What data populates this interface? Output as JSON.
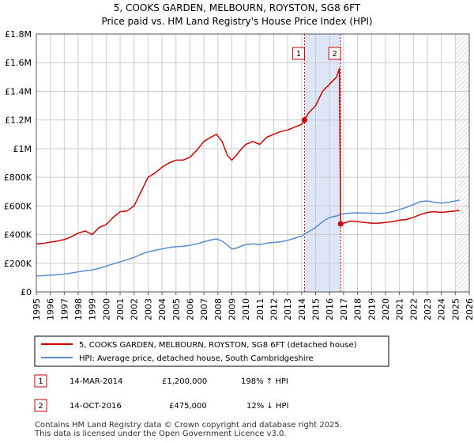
{
  "chart_data": {
    "type": "line",
    "title": "5, COOKS GARDEN, MELBOURN, ROYSTON, SG8 6FT",
    "subtitle": "Price paid vs. HM Land Registry's House Price Index (HPI)",
    "xlabel": "",
    "ylabel": "",
    "xlim": [
      1995,
      2026
    ],
    "ylim": [
      0,
      1800000
    ],
    "y_ticks": [
      {
        "value": 0,
        "label": "£0"
      },
      {
        "value": 200000,
        "label": "£200K"
      },
      {
        "value": 400000,
        "label": "£400K"
      },
      {
        "value": 600000,
        "label": "£600K"
      },
      {
        "value": 800000,
        "label": "£800K"
      },
      {
        "value": 1000000,
        "label": "£1M"
      },
      {
        "value": 1200000,
        "label": "£1.2M"
      },
      {
        "value": 1400000,
        "label": "£1.4M"
      },
      {
        "value": 1600000,
        "label": "£1.6M"
      },
      {
        "value": 1800000,
        "label": "£1.8M"
      }
    ],
    "x_ticks": [
      "1995",
      "1996",
      "1997",
      "1998",
      "1999",
      "2000",
      "2001",
      "2002",
      "2003",
      "2004",
      "2005",
      "2006",
      "2007",
      "2008",
      "2009",
      "2010",
      "2011",
      "2012",
      "2013",
      "2014",
      "2015",
      "2016",
      "2017",
      "2018",
      "2019",
      "2020",
      "2021",
      "2022",
      "2023",
      "2024",
      "2025",
      "2026"
    ],
    "grid": true,
    "shaded_period": {
      "start": 2014.2,
      "end": 2016.79
    },
    "future_hatch_start": 2025.0,
    "series": [
      {
        "name": "5, COOKS GARDEN, MELBOURN, ROYSTON, SG8 6FT (detached house)",
        "color": "#cc0000",
        "x": [
          1995,
          1995.5,
          1996,
          1996.5,
          1997,
          1997.5,
          1998,
          1998.5,
          1999,
          1999.5,
          2000,
          2000.5,
          2001,
          2001.5,
          2002,
          2002.5,
          2003,
          2003.5,
          2004,
          2004.5,
          2005,
          2005.5,
          2006,
          2006.5,
          2007,
          2007.5,
          2007.9,
          2008.3,
          2008.7,
          2009,
          2009.3,
          2009.7,
          2010,
          2010.5,
          2011,
          2011.5,
          2012,
          2012.5,
          2013,
          2013.5,
          2014.0,
          2014.2,
          2014.5,
          2015,
          2015.5,
          2016,
          2016.5,
          2016.7,
          2016.79,
          2017,
          2017.5,
          2018,
          2018.5,
          2019,
          2019.5,
          2020,
          2020.5,
          2021,
          2021.5,
          2022,
          2022.5,
          2023,
          2023.5,
          2024,
          2024.5,
          2025,
          2025.3
        ],
        "values": [
          335000,
          338000,
          348000,
          355000,
          365000,
          385000,
          410000,
          425000,
          400000,
          450000,
          470000,
          520000,
          560000,
          565000,
          600000,
          700000,
          800000,
          830000,
          870000,
          900000,
          920000,
          920000,
          940000,
          990000,
          1050000,
          1080000,
          1100000,
          1050000,
          950000,
          920000,
          950000,
          1000000,
          1030000,
          1050000,
          1030000,
          1080000,
          1100000,
          1120000,
          1130000,
          1150000,
          1170000,
          1200000,
          1250000,
          1300000,
          1400000,
          1450000,
          1500000,
          1560000,
          475000,
          480000,
          495000,
          490000,
          485000,
          480000,
          480000,
          485000,
          490000,
          500000,
          505000,
          520000,
          540000,
          555000,
          560000,
          555000,
          560000,
          565000,
          570000
        ]
      },
      {
        "name": "HPI: Average price, detached house, South Cambridgeshire",
        "color": "#5a8cd2",
        "x": [
          1995,
          1995.5,
          1996,
          1996.5,
          1997,
          1997.5,
          1998,
          1998.5,
          1999,
          1999.5,
          2000,
          2000.5,
          2001,
          2001.5,
          2002,
          2002.5,
          2003,
          2003.5,
          2004,
          2004.5,
          2005,
          2005.5,
          2006,
          2006.5,
          2007,
          2007.5,
          2007.9,
          2008.3,
          2008.7,
          2009,
          2009.3,
          2009.7,
          2010,
          2010.5,
          2011,
          2011.5,
          2012,
          2012.5,
          2013,
          2013.5,
          2014.0,
          2014.2,
          2014.5,
          2015,
          2015.5,
          2016,
          2016.5,
          2016.79,
          2017,
          2017.5,
          2018,
          2018.5,
          2019,
          2019.5,
          2020,
          2020.5,
          2021,
          2021.5,
          2022,
          2022.5,
          2023,
          2023.5,
          2024,
          2024.5,
          2025,
          2025.3
        ],
        "values": [
          112000,
          113000,
          116000,
          120000,
          125000,
          132000,
          140000,
          148000,
          153000,
          165000,
          180000,
          195000,
          210000,
          225000,
          240000,
          262000,
          280000,
          290000,
          300000,
          310000,
          315000,
          318000,
          325000,
          335000,
          350000,
          362000,
          370000,
          355000,
          325000,
          300000,
          305000,
          320000,
          330000,
          335000,
          330000,
          340000,
          345000,
          350000,
          360000,
          375000,
          390000,
          403000,
          420000,
          450000,
          490000,
          520000,
          530000,
          540000,
          545000,
          550000,
          552000,
          550000,
          550000,
          548000,
          550000,
          560000,
          575000,
          590000,
          610000,
          630000,
          635000,
          625000,
          620000,
          625000,
          635000,
          640000
        ]
      }
    ],
    "markers": [
      {
        "label": "1",
        "x": 2014.2,
        "y": 1200000,
        "series": 0
      },
      {
        "label": "2",
        "x": 2016.79,
        "y": 475000,
        "series": 0
      }
    ]
  },
  "legend": {
    "items": [
      {
        "label": "5, COOKS GARDEN, MELBOURN, ROYSTON, SG8 6FT (detached house)",
        "color": "#cc0000"
      },
      {
        "label": "HPI: Average price, detached house, South Cambridgeshire",
        "color": "#5a8cd2"
      }
    ]
  },
  "transactions": [
    {
      "num": "1",
      "date": "14-MAR-2014",
      "price": "£1,200,000",
      "hpi": "198% ↑ HPI"
    },
    {
      "num": "2",
      "date": "14-OCT-2016",
      "price": "£475,000",
      "hpi": "12% ↓ HPI"
    }
  ],
  "footer": {
    "line1": "Contains HM Land Registry data © Crown copyright and database right 2025.",
    "line2": "This data is licensed under the Open Government Licence v3.0."
  },
  "colors": {
    "grid": "#cccccc",
    "shade": "#dde6f7",
    "marker_border": "#cc0000"
  }
}
